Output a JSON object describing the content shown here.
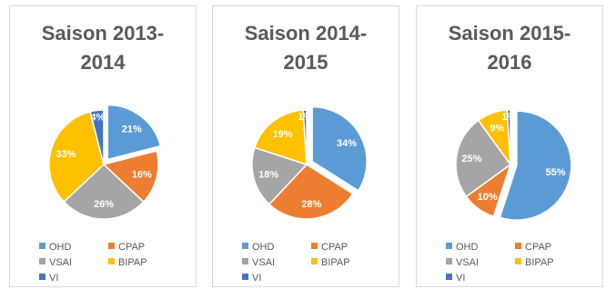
{
  "chart_data": [
    {
      "type": "pie",
      "title": "Saison 2013-2014",
      "categories": [
        "OHD",
        "CPAP",
        "VSAI",
        "BIPAP",
        "VI"
      ],
      "values": [
        21,
        16,
        26,
        33,
        4
      ],
      "value_labels": [
        "21%",
        "16%",
        "26%",
        "33%",
        "4%"
      ],
      "colors": [
        "#5b9bd5",
        "#ed7d31",
        "#a5a5a5",
        "#ffc000",
        "#4472c4"
      ],
      "explode": [
        true,
        false,
        false,
        false,
        false
      ]
    },
    {
      "type": "pie",
      "title": "Saison 2014-2015",
      "categories": [
        "OHD",
        "CPAP",
        "VSAI",
        "BIPAP",
        "VI"
      ],
      "values": [
        34,
        28,
        18,
        19,
        1
      ],
      "value_labels": [
        "34%",
        "28%",
        "18%",
        "19%",
        "1%"
      ],
      "colors": [
        "#5b9bd5",
        "#ed7d31",
        "#a5a5a5",
        "#ffc000",
        "#4472c4"
      ],
      "explode": [
        true,
        false,
        false,
        false,
        false
      ]
    },
    {
      "type": "pie",
      "title": "Saison 2015-2016",
      "categories": [
        "OHD",
        "CPAP",
        "VSAI",
        "BIPAP",
        "VI"
      ],
      "values": [
        55,
        10,
        25,
        9,
        1
      ],
      "value_labels": [
        "55%",
        "10%",
        "25%",
        "9%",
        "1%"
      ],
      "colors": [
        "#5b9bd5",
        "#ed7d31",
        "#a5a5a5",
        "#ffc000",
        "#4472c4"
      ],
      "explode": [
        true,
        false,
        false,
        false,
        false
      ]
    }
  ]
}
